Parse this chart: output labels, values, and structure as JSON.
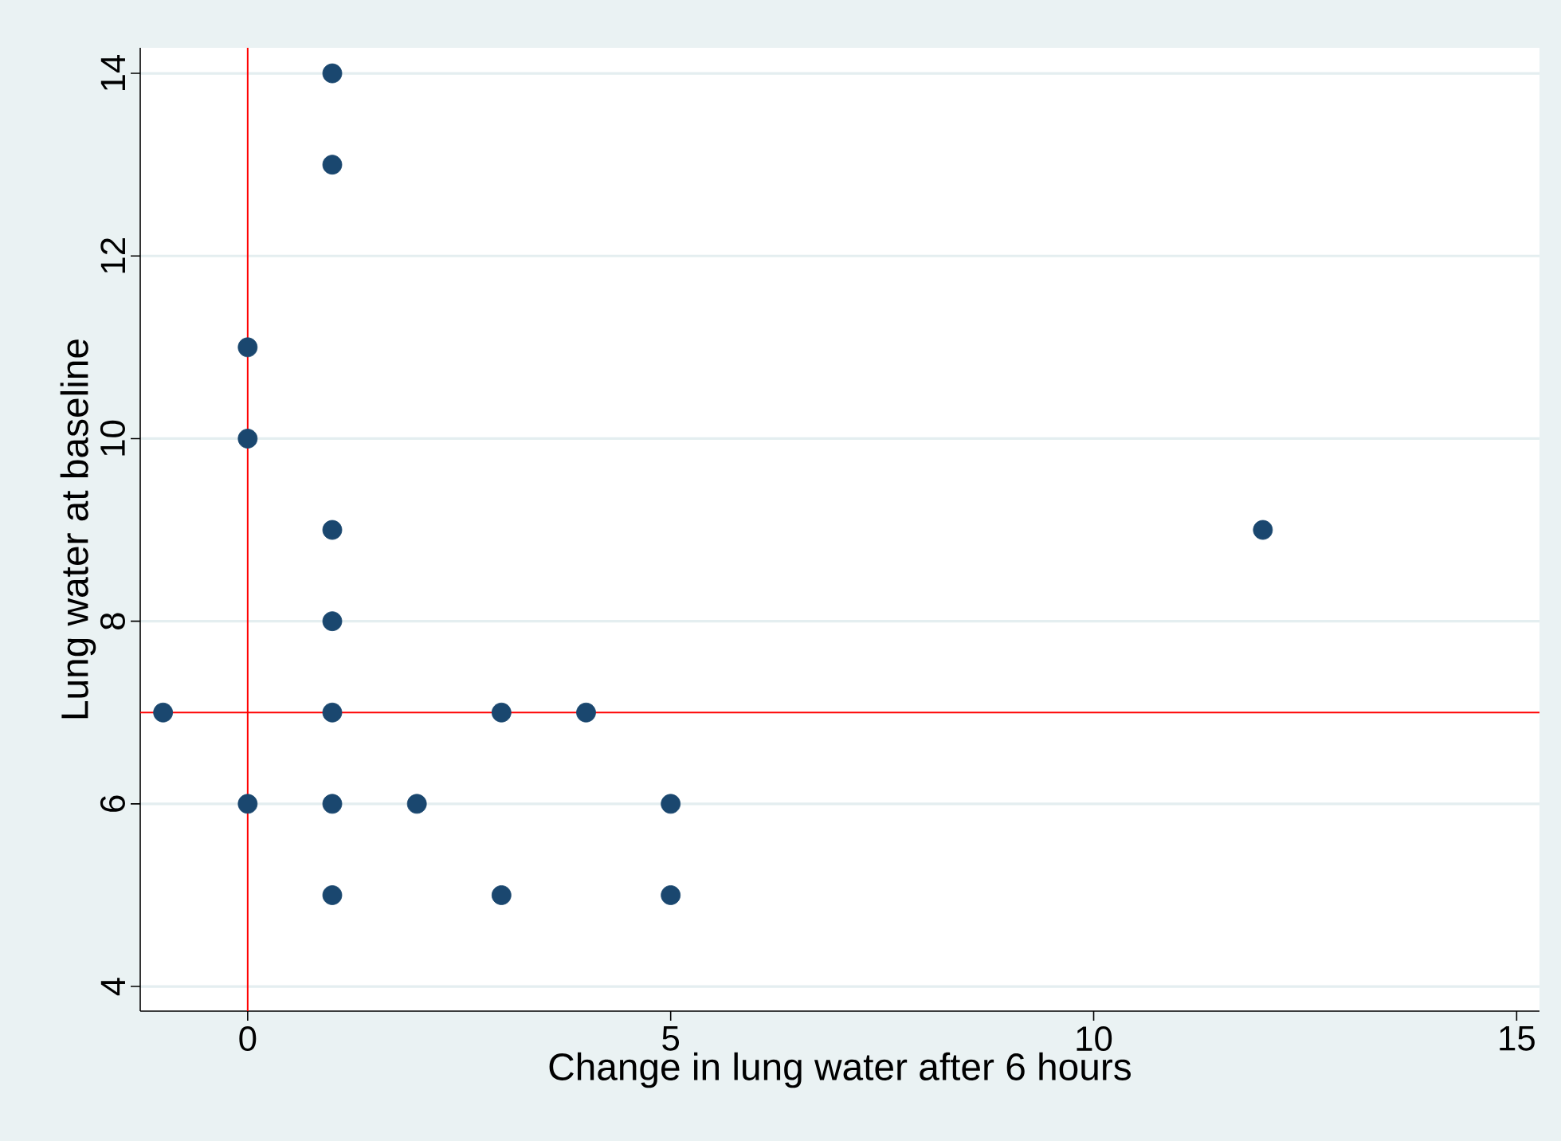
{
  "chart_data": {
    "type": "scatter",
    "xlabel": "Change in lung water after 6 hours",
    "ylabel": "Lung water at baseline",
    "x": [
      -1,
      0,
      0,
      0,
      1,
      1,
      1,
      1,
      1,
      1,
      1,
      2,
      3,
      3,
      4,
      5,
      5,
      12
    ],
    "values": [
      7,
      11,
      10,
      6,
      14,
      13,
      9,
      8,
      7,
      6,
      5,
      6,
      7,
      5,
      7,
      6,
      5,
      9
    ],
    "color": "#1a476f",
    "marker": "circle",
    "xlim": [
      -1.27,
      15.27
    ],
    "ylim": [
      3.73,
      14.28
    ],
    "xticks": [
      0,
      5,
      10,
      15
    ],
    "yticks": [
      4,
      6,
      8,
      10,
      12,
      14
    ],
    "grid": "y",
    "ref_lines": [
      {
        "axis": "x",
        "value": 0,
        "color": "#ff0000"
      },
      {
        "axis": "y",
        "value": 7,
        "color": "#ff0000"
      }
    ]
  }
}
